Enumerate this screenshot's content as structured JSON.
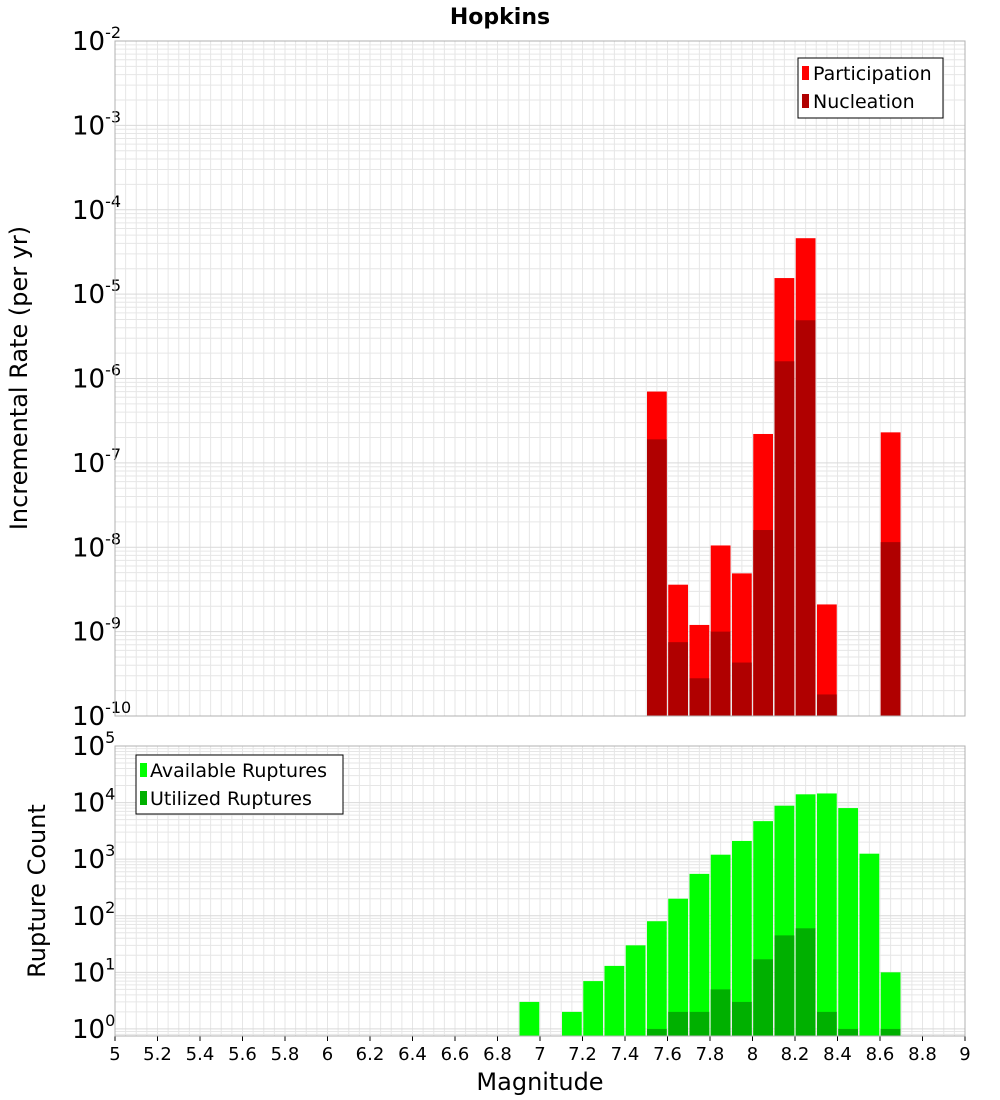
{
  "colors": {
    "participation": "#ff0000",
    "nucleation": "#b00000",
    "available": "#00ff00",
    "utilized": "#00b000",
    "grid": "#e6e6e6",
    "frame": "#b0b0b0"
  },
  "chart_data": [
    {
      "type": "bar",
      "title": "Hopkins",
      "xlabel": "Magnitude",
      "ylabel": "Incremental Rate (per yr)",
      "yscale": "log",
      "xlim": [
        5,
        9
      ],
      "ylim": [
        1e-10,
        0.01
      ],
      "grid": true,
      "legend_position": "top-right",
      "y_ticks": [
        {
          "base": "10",
          "exp": "-10",
          "value": 1e-10
        },
        {
          "base": "10",
          "exp": "-9",
          "value": 1e-09
        },
        {
          "base": "10",
          "exp": "-8",
          "value": 1e-08
        },
        {
          "base": "10",
          "exp": "-7",
          "value": 1e-07
        },
        {
          "base": "10",
          "exp": "-6",
          "value": 1e-06
        },
        {
          "base": "10",
          "exp": "-5",
          "value": 1e-05
        },
        {
          "base": "10",
          "exp": "-4",
          "value": 0.0001
        },
        {
          "base": "10",
          "exp": "-3",
          "value": 0.001
        },
        {
          "base": "10",
          "exp": "-2",
          "value": 0.01
        }
      ],
      "series": [
        {
          "name": "Participation",
          "color": "#ff0000",
          "points": [
            {
              "x": 7.55,
              "y": 7e-07
            },
            {
              "x": 7.65,
              "y": 3.6e-09
            },
            {
              "x": 7.75,
              "y": 1.2e-09
            },
            {
              "x": 7.85,
              "y": 1.05e-08
            },
            {
              "x": 7.95,
              "y": 4.9e-09
            },
            {
              "x": 8.05,
              "y": 2.2e-07
            },
            {
              "x": 8.15,
              "y": 1.55e-05
            },
            {
              "x": 8.25,
              "y": 4.6e-05
            },
            {
              "x": 8.35,
              "y": 2.1e-09
            },
            {
              "x": 8.65,
              "y": 2.3e-07
            }
          ]
        },
        {
          "name": "Nucleation",
          "color": "#b00000",
          "points": [
            {
              "x": 7.55,
              "y": 1.9e-07
            },
            {
              "x": 7.65,
              "y": 7.5e-10
            },
            {
              "x": 7.75,
              "y": 2.8e-10
            },
            {
              "x": 7.85,
              "y": 1e-09
            },
            {
              "x": 7.95,
              "y": 4.3e-10
            },
            {
              "x": 8.05,
              "y": 1.6e-08
            },
            {
              "x": 8.15,
              "y": 1.6e-06
            },
            {
              "x": 8.25,
              "y": 4.9e-06
            },
            {
              "x": 8.35,
              "y": 1.8e-10
            },
            {
              "x": 8.65,
              "y": 1.15e-08
            }
          ]
        }
      ]
    },
    {
      "type": "bar",
      "xlabel": "Magnitude",
      "ylabel": "Rupture Count",
      "yscale": "log",
      "xlim": [
        5,
        9
      ],
      "ylim": [
        0.75,
        100000.0
      ],
      "grid": true,
      "legend_position": "top-left",
      "x_ticks": [
        "5",
        "5.2",
        "5.4",
        "5.6",
        "5.8",
        "6",
        "6.2",
        "6.4",
        "6.6",
        "6.8",
        "7",
        "7.2",
        "7.4",
        "7.6",
        "7.8",
        "8",
        "8.2",
        "8.4",
        "8.6",
        "8.8",
        "9"
      ],
      "y_ticks": [
        {
          "base": "10",
          "exp": "0",
          "value": 1
        },
        {
          "base": "10",
          "exp": "1",
          "value": 10
        },
        {
          "base": "10",
          "exp": "2",
          "value": 100
        },
        {
          "base": "10",
          "exp": "3",
          "value": 1000
        },
        {
          "base": "10",
          "exp": "4",
          "value": 10000
        },
        {
          "base": "10",
          "exp": "5",
          "value": 100000
        }
      ],
      "series": [
        {
          "name": "Available Ruptures",
          "color": "#00ff00",
          "points": [
            {
              "x": 6.95,
              "y": 3
            },
            {
              "x": 7.15,
              "y": 2
            },
            {
              "x": 7.25,
              "y": 7
            },
            {
              "x": 7.35,
              "y": 13
            },
            {
              "x": 7.45,
              "y": 30
            },
            {
              "x": 7.55,
              "y": 80
            },
            {
              "x": 7.65,
              "y": 200
            },
            {
              "x": 7.75,
              "y": 550
            },
            {
              "x": 7.85,
              "y": 1200
            },
            {
              "x": 7.95,
              "y": 2100
            },
            {
              "x": 8.05,
              "y": 4700
            },
            {
              "x": 8.15,
              "y": 8800
            },
            {
              "x": 8.25,
              "y": 14000
            },
            {
              "x": 8.35,
              "y": 14500
            },
            {
              "x": 8.45,
              "y": 8000
            },
            {
              "x": 8.55,
              "y": 1250
            },
            {
              "x": 8.65,
              "y": 10
            }
          ]
        },
        {
          "name": "Utilized Ruptures",
          "color": "#00b000",
          "points": [
            {
              "x": 7.55,
              "y": 1
            },
            {
              "x": 7.65,
              "y": 2
            },
            {
              "x": 7.75,
              "y": 2
            },
            {
              "x": 7.85,
              "y": 5
            },
            {
              "x": 7.95,
              "y": 3
            },
            {
              "x": 8.05,
              "y": 17
            },
            {
              "x": 8.15,
              "y": 45
            },
            {
              "x": 8.25,
              "y": 60
            },
            {
              "x": 8.35,
              "y": 2
            },
            {
              "x": 8.45,
              "y": 1
            },
            {
              "x": 8.65,
              "y": 1
            }
          ]
        }
      ]
    }
  ]
}
